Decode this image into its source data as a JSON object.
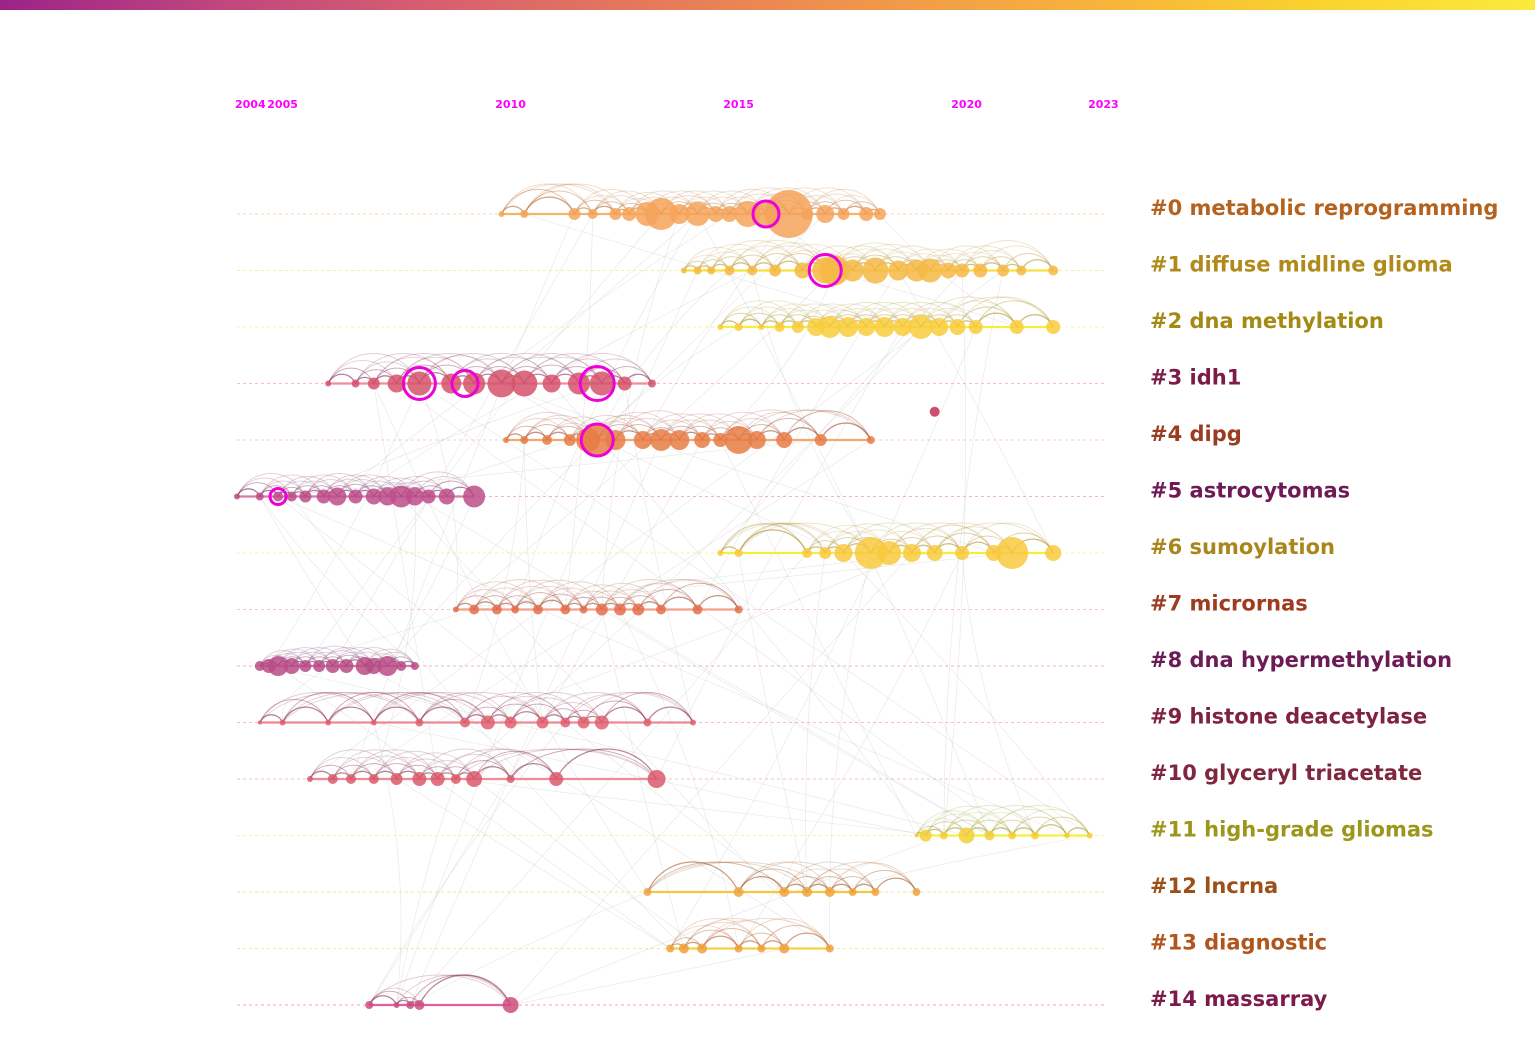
{
  "chart_data": {
    "type": "timeline",
    "title": "",
    "colorbar": {
      "colors": [
        "#9b2388",
        "#c0467e",
        "#d85f6f",
        "#e67a5a",
        "#f0974a",
        "#f7b33c",
        "#f9d22e",
        "#fbea3d"
      ],
      "tick_labels": [
        "",
        "",
        " ",
        ""
      ]
    },
    "year_range": [
      2004,
      2023
    ],
    "year_ticks": [
      2004,
      2005,
      2010,
      2015,
      2020,
      2023
    ],
    "clusters": [
      {
        "id": 0,
        "label": "#0 metabolic reprogramming",
        "color": "#b4621e",
        "node_color": "#f4a35a",
        "line_color": "#f6b36a",
        "span": [
          2009.8,
          2018.1
        ],
        "nodes": [
          [
            2009.8,
            3
          ],
          [
            2010.3,
            4
          ],
          [
            2011.4,
            6
          ],
          [
            2011.8,
            5
          ],
          [
            2012.3,
            6
          ],
          [
            2012.6,
            7
          ],
          [
            2013.0,
            12
          ],
          [
            2013.3,
            16
          ],
          [
            2013.7,
            10
          ],
          [
            2014.1,
            12
          ],
          [
            2014.5,
            8
          ],
          [
            2014.8,
            8
          ],
          [
            2015.2,
            13
          ],
          [
            2015.6,
            12
          ],
          [
            2016.1,
            24
          ],
          [
            2016.5,
            6
          ],
          [
            2016.9,
            9
          ],
          [
            2017.3,
            6
          ],
          [
            2017.8,
            7
          ],
          [
            2018.1,
            6
          ]
        ],
        "highlights": [
          [
            2015.6,
            13
          ]
        ]
      },
      {
        "id": 1,
        "label": "#1 diffuse midline glioma",
        "color": "#b08a1a",
        "node_color": "#f6b845",
        "line_color": "#f7e23c",
        "span": [
          2013.8,
          2021.9
        ],
        "nodes": [
          [
            2013.8,
            3
          ],
          [
            2014.1,
            4
          ],
          [
            2014.4,
            4
          ],
          [
            2014.8,
            5
          ],
          [
            2015.3,
            5
          ],
          [
            2015.8,
            6
          ],
          [
            2016.4,
            8
          ],
          [
            2016.9,
            13
          ],
          [
            2017.1,
            15
          ],
          [
            2017.5,
            11
          ],
          [
            2018.0,
            13
          ],
          [
            2018.5,
            10
          ],
          [
            2018.9,
            11
          ],
          [
            2019.2,
            12
          ],
          [
            2019.6,
            8
          ],
          [
            2019.9,
            7
          ],
          [
            2020.3,
            7
          ],
          [
            2020.8,
            6
          ],
          [
            2021.2,
            5
          ],
          [
            2021.9,
            5
          ]
        ],
        "highlights": [
          [
            2016.9,
            16
          ]
        ]
      },
      {
        "id": 2,
        "label": "#2 dna methylation",
        "color": "#a38a12",
        "node_color": "#f8cd3c",
        "line_color": "#f7ee3c",
        "span": [
          2014.6,
          2021.9
        ],
        "nodes": [
          [
            2014.6,
            3
          ],
          [
            2015.0,
            4
          ],
          [
            2015.5,
            3
          ],
          [
            2015.9,
            5
          ],
          [
            2016.3,
            6
          ],
          [
            2016.7,
            9
          ],
          [
            2017.0,
            11
          ],
          [
            2017.4,
            10
          ],
          [
            2017.8,
            9
          ],
          [
            2018.2,
            10
          ],
          [
            2018.6,
            9
          ],
          [
            2019.0,
            12
          ],
          [
            2019.4,
            9
          ],
          [
            2019.8,
            8
          ],
          [
            2020.2,
            7
          ],
          [
            2021.1,
            7
          ],
          [
            2021.9,
            7
          ]
        ],
        "highlights": []
      },
      {
        "id": 3,
        "label": "#3 idh1",
        "color": "#7a1b48",
        "node_color": "#d5526b",
        "line_color": "#f48ca0",
        "span": [
          2006.0,
          2013.1
        ],
        "nodes": [
          [
            2006.0,
            3
          ],
          [
            2006.6,
            4
          ],
          [
            2007.0,
            6
          ],
          [
            2007.5,
            9
          ],
          [
            2008.0,
            12
          ],
          [
            2008.7,
            10
          ],
          [
            2009.2,
            11
          ],
          [
            2009.8,
            14
          ],
          [
            2010.3,
            13
          ],
          [
            2010.9,
            9
          ],
          [
            2011.5,
            11
          ],
          [
            2012.0,
            12
          ],
          [
            2012.5,
            7
          ],
          [
            2013.1,
            4
          ]
        ],
        "highlights": [
          [
            2008.0,
            16
          ],
          [
            2009.0,
            13
          ],
          [
            2011.9,
            17
          ]
        ]
      },
      {
        "id": 4,
        "label": "#4 dipg",
        "color": "#9a3c22",
        "node_color": "#e77c45",
        "line_color": "#f3a870",
        "span": [
          2009.9,
          2017.9
        ],
        "nodes": [
          [
            2009.9,
            3
          ],
          [
            2010.3,
            4
          ],
          [
            2010.8,
            5
          ],
          [
            2011.3,
            6
          ],
          [
            2011.7,
            12
          ],
          [
            2011.9,
            15
          ],
          [
            2012.3,
            10
          ],
          [
            2012.9,
            9
          ],
          [
            2013.3,
            11
          ],
          [
            2013.7,
            10
          ],
          [
            2014.2,
            8
          ],
          [
            2014.6,
            7
          ],
          [
            2015.0,
            14
          ],
          [
            2015.4,
            9
          ],
          [
            2016.0,
            8
          ],
          [
            2016.8,
            6
          ],
          [
            2017.9,
            4
          ]
        ],
        "highlights": [
          [
            2011.9,
            16
          ]
        ]
      },
      {
        "id": 5,
        "label": "#5 astrocytomas",
        "color": "#6d1a55",
        "node_color": "#bd4d89",
        "line_color": "#d87aa8",
        "span": [
          2004.0,
          2009.2
        ],
        "nodes": [
          [
            2004.0,
            3
          ],
          [
            2004.5,
            4
          ],
          [
            2004.9,
            5
          ],
          [
            2005.2,
            5
          ],
          [
            2005.5,
            6
          ],
          [
            2005.9,
            7
          ],
          [
            2006.2,
            9
          ],
          [
            2006.6,
            7
          ],
          [
            2007.0,
            8
          ],
          [
            2007.3,
            9
          ],
          [
            2007.6,
            11
          ],
          [
            2007.9,
            9
          ],
          [
            2008.2,
            7
          ],
          [
            2008.6,
            8
          ],
          [
            2009.2,
            11
          ]
        ],
        "highlights": [
          [
            2004.9,
            8
          ]
        ]
      },
      {
        "id": 6,
        "label": "#6 sumoylation",
        "color": "#a9861b",
        "node_color": "#f8c93e",
        "line_color": "#f7ee3c",
        "span": [
          2014.6,
          2021.9
        ],
        "nodes": [
          [
            2014.6,
            3
          ],
          [
            2015.0,
            4
          ],
          [
            2016.5,
            5
          ],
          [
            2016.9,
            6
          ],
          [
            2017.3,
            9
          ],
          [
            2017.9,
            16
          ],
          [
            2018.3,
            12
          ],
          [
            2018.8,
            9
          ],
          [
            2019.3,
            8
          ],
          [
            2019.9,
            7
          ],
          [
            2020.6,
            8
          ],
          [
            2021.0,
            16
          ],
          [
            2021.9,
            8
          ]
        ],
        "highlights": []
      },
      {
        "id": 7,
        "label": "#7 micrornas",
        "color": "#9c3d20",
        "node_color": "#e46f4c",
        "line_color": "#f2a28a",
        "span": [
          2008.8,
          2015.0
        ],
        "nodes": [
          [
            2008.8,
            3
          ],
          [
            2009.2,
            5
          ],
          [
            2009.7,
            5
          ],
          [
            2010.1,
            4
          ],
          [
            2010.6,
            5
          ],
          [
            2011.2,
            5
          ],
          [
            2011.6,
            4
          ],
          [
            2012.0,
            6
          ],
          [
            2012.4,
            6
          ],
          [
            2012.8,
            6
          ],
          [
            2013.3,
            5
          ],
          [
            2014.1,
            5
          ],
          [
            2015.0,
            4
          ]
        ],
        "highlights": []
      },
      {
        "id": 8,
        "label": "#8 dna hypermethylation",
        "color": "#6b1b55",
        "node_color": "#b94c86",
        "line_color": "#d57aa7",
        "span": [
          2004.5,
          2007.9
        ],
        "nodes": [
          [
            2004.5,
            5
          ],
          [
            2004.7,
            7
          ],
          [
            2004.9,
            10
          ],
          [
            2005.2,
            8
          ],
          [
            2005.5,
            6
          ],
          [
            2005.8,
            6
          ],
          [
            2006.1,
            7
          ],
          [
            2006.4,
            7
          ],
          [
            2006.8,
            9
          ],
          [
            2007.0,
            8
          ],
          [
            2007.3,
            10
          ],
          [
            2007.6,
            5
          ],
          [
            2007.9,
            4
          ]
        ],
        "highlights": []
      },
      {
        "id": 9,
        "label": "#9 histone deacetylase",
        "color": "#7f2240",
        "node_color": "#e06070",
        "line_color": "#ef8896",
        "span": [
          2004.5,
          2014.0
        ],
        "nodes": [
          [
            2004.5,
            2
          ],
          [
            2005.0,
            3
          ],
          [
            2006.0,
            3
          ],
          [
            2007.0,
            3
          ],
          [
            2008.0,
            4
          ],
          [
            2009.0,
            5
          ],
          [
            2009.5,
            7
          ],
          [
            2010.0,
            6
          ],
          [
            2010.7,
            6
          ],
          [
            2011.2,
            5
          ],
          [
            2011.6,
            6
          ],
          [
            2012.0,
            7
          ],
          [
            2013.0,
            4
          ],
          [
            2014.0,
            3
          ]
        ],
        "highlights": []
      },
      {
        "id": 10,
        "label": "#10 glyceryl triacetate",
        "color": "#7f2740",
        "node_color": "#db5a6c",
        "line_color": "#ef8a96",
        "span": [
          2005.6,
          2013.2
        ],
        "nodes": [
          [
            2005.6,
            3
          ],
          [
            2006.1,
            5
          ],
          [
            2006.5,
            5
          ],
          [
            2007.0,
            5
          ],
          [
            2007.5,
            6
          ],
          [
            2008.0,
            7
          ],
          [
            2008.4,
            7
          ],
          [
            2008.8,
            5
          ],
          [
            2009.2,
            8
          ],
          [
            2010.0,
            4
          ],
          [
            2011.0,
            7
          ],
          [
            2013.2,
            9
          ]
        ],
        "highlights": []
      },
      {
        "id": 11,
        "label": "#11 high-grade gliomas",
        "color": "#9c961a",
        "node_color": "#f3cf3a",
        "line_color": "#f7f03c",
        "span": [
          2018.9,
          2022.7
        ],
        "nodes": [
          [
            2018.9,
            2
          ],
          [
            2019.1,
            6
          ],
          [
            2019.5,
            4
          ],
          [
            2020.0,
            8
          ],
          [
            2020.5,
            5
          ],
          [
            2021.0,
            4
          ],
          [
            2021.5,
            4
          ],
          [
            2022.2,
            3
          ],
          [
            2022.7,
            3
          ]
        ],
        "highlights": []
      },
      {
        "id": 12,
        "label": "#12 lncrna",
        "color": "#9c4f16",
        "node_color": "#f0a440",
        "line_color": "#f7c540",
        "span": [
          2013.0,
          2018.0
        ],
        "nodes": [
          [
            2013.0,
            4
          ],
          [
            2015.0,
            5
          ],
          [
            2016.0,
            5
          ],
          [
            2016.5,
            5
          ],
          [
            2017.0,
            5
          ],
          [
            2017.5,
            4
          ],
          [
            2018.0,
            4
          ],
          [
            2018.9,
            4
          ]
        ],
        "highlights": []
      },
      {
        "id": 13,
        "label": "#13 diagnostic",
        "color": "#b0551c",
        "node_color": "#f0a040",
        "line_color": "#f7d040",
        "span": [
          2013.5,
          2017.0
        ],
        "nodes": [
          [
            2013.5,
            4
          ],
          [
            2013.8,
            5
          ],
          [
            2014.2,
            5
          ],
          [
            2015.0,
            4
          ],
          [
            2015.5,
            4
          ],
          [
            2016.0,
            5
          ],
          [
            2017.0,
            4
          ]
        ],
        "highlights": []
      },
      {
        "id": 14,
        "label": "#14 massarray",
        "color": "#7d1a4a",
        "node_color": "#cc4d7f",
        "line_color": "#e0609c",
        "span": [
          2006.9,
          2010.0
        ],
        "nodes": [
          [
            2006.9,
            4
          ],
          [
            2007.5,
            3
          ],
          [
            2007.8,
            4
          ],
          [
            2008.0,
            5
          ],
          [
            2010.0,
            8
          ]
        ],
        "highlights": []
      }
    ],
    "outliers": [
      {
        "year": 2019.3,
        "cluster": 3.5,
        "color": "#cc4d6e"
      }
    ]
  }
}
